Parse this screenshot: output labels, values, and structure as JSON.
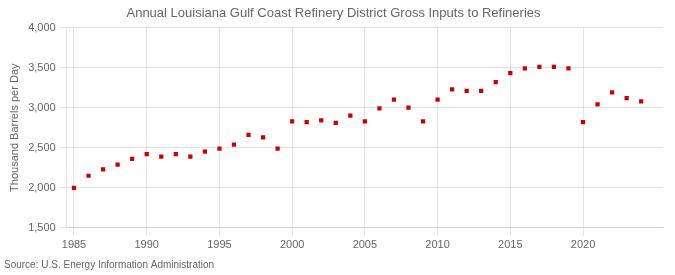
{
  "chart_data": {
    "type": "scatter",
    "title": "Annual Louisiana Gulf Coast Refinery District Gross Inputs to Refineries",
    "y_label": "Thousand Barrels per Day",
    "source": "Source: U.S. Energy Information Administration",
    "x": [
      1985,
      1986,
      1987,
      1988,
      1989,
      1990,
      1991,
      1992,
      1993,
      1994,
      1995,
      1996,
      1997,
      1998,
      1999,
      2000,
      2001,
      2002,
      2003,
      2004,
      2005,
      2006,
      2007,
      2008,
      2009,
      2010,
      2011,
      2012,
      2013,
      2014,
      2015,
      2016,
      2017,
      2018,
      2019,
      2020,
      2021,
      2022,
      2023,
      2024
    ],
    "values": [
      2000,
      2150,
      2230,
      2290,
      2360,
      2420,
      2390,
      2420,
      2390,
      2450,
      2490,
      2540,
      2660,
      2630,
      2490,
      2830,
      2820,
      2840,
      2810,
      2900,
      2830,
      2990,
      3100,
      3000,
      2830,
      3100,
      3230,
      3210,
      3210,
      3320,
      3430,
      3490,
      3510,
      3510,
      3490,
      2820,
      3040,
      3190,
      3120,
      3080
    ],
    "color": "#cc0000",
    "marker": "square",
    "xlim": [
      1984.5,
      2025.5
    ],
    "xticks": [
      1985,
      1990,
      1995,
      2000,
      2005,
      2010,
      2015,
      2020
    ],
    "ylim": [
      1500,
      4000
    ],
    "yticks": [
      {
        "value": 1500,
        "label": "1,500"
      },
      {
        "value": 2000,
        "label": "2,000"
      },
      {
        "value": 2500,
        "label": "2,500"
      },
      {
        "value": 3000,
        "label": "3,000"
      },
      {
        "value": 3500,
        "label": "3,500"
      },
      {
        "value": 4000,
        "label": "4,000"
      }
    ],
    "grid": true
  }
}
